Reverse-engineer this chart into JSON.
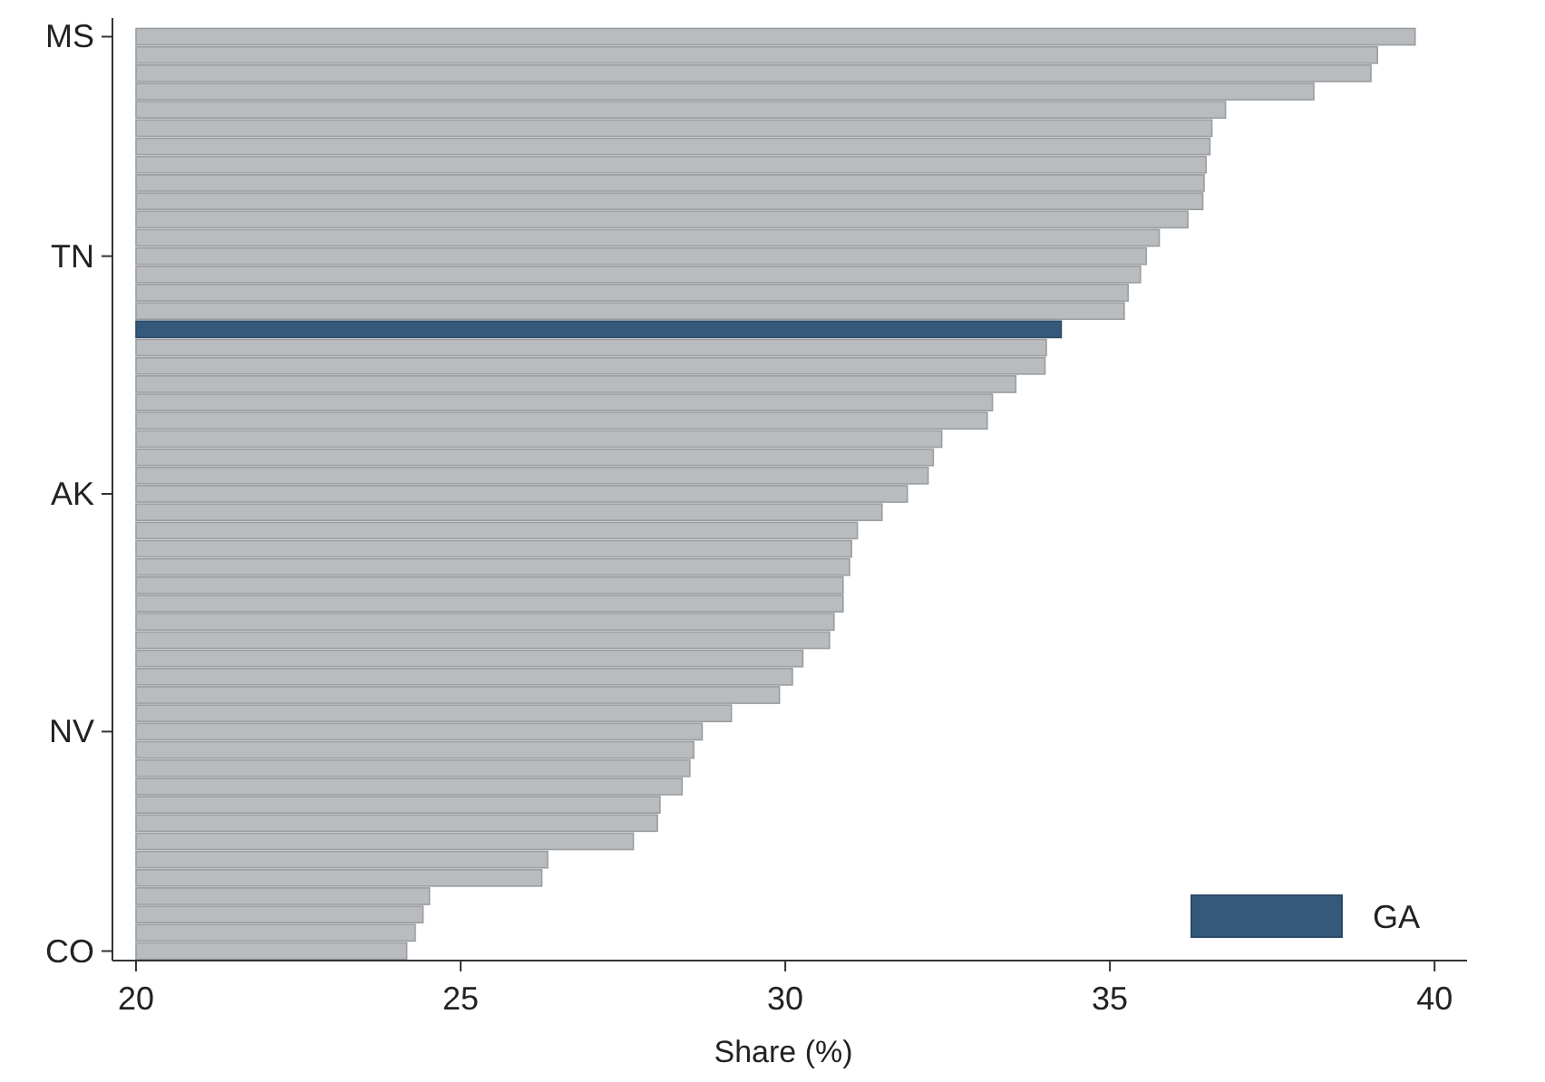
{
  "chart_data": {
    "type": "bar",
    "orientation": "horizontal",
    "xlabel": "Share (%)",
    "categories": [
      "MS",
      null,
      null,
      null,
      null,
      null,
      null,
      null,
      null,
      null,
      null,
      null,
      "TN",
      null,
      null,
      null,
      null,
      null,
      null,
      null,
      null,
      null,
      null,
      null,
      null,
      "AK",
      null,
      null,
      null,
      null,
      null,
      null,
      null,
      null,
      null,
      null,
      null,
      null,
      "NV",
      null,
      null,
      null,
      null,
      null,
      null,
      null,
      null,
      null,
      null,
      null,
      "CO"
    ],
    "series": [
      {
        "name": "GA",
        "color": "#34597a",
        "values": [
          null,
          null,
          null,
          null,
          null,
          null,
          null,
          null,
          null,
          null,
          null,
          null,
          null,
          null,
          null,
          null,
          34.25,
          null,
          null,
          null,
          null,
          null,
          null,
          null,
          null,
          null,
          null,
          null,
          null,
          null,
          null,
          null,
          null,
          null,
          null,
          null,
          null,
          null,
          null,
          null,
          null,
          null,
          null,
          null,
          null,
          null,
          null,
          null,
          null,
          null,
          null
        ]
      },
      {
        "color": "#b8bcbf",
        "values": [
          39.7,
          39.12,
          39.02,
          38.14,
          36.78,
          36.57,
          36.54,
          36.48,
          36.45,
          36.43,
          36.2,
          35.76,
          35.56,
          35.47,
          35.28,
          35.22,
          null,
          34.02,
          34.0,
          33.55,
          33.19,
          33.11,
          32.41,
          32.28,
          32.2,
          31.88,
          31.49,
          31.11,
          31.02,
          30.99,
          30.89,
          30.89,
          30.75,
          30.68,
          30.27,
          30.11,
          29.91,
          29.17,
          28.72,
          28.59,
          28.53,
          28.41,
          28.07,
          28.03,
          27.66,
          26.34,
          26.25,
          24.52,
          24.42,
          24.3,
          24.17
        ]
      }
    ],
    "xlim": [
      20,
      40.5
    ],
    "xticks": [
      20,
      25,
      30,
      35,
      40
    ],
    "grid": false,
    "legend": "bottom right"
  }
}
